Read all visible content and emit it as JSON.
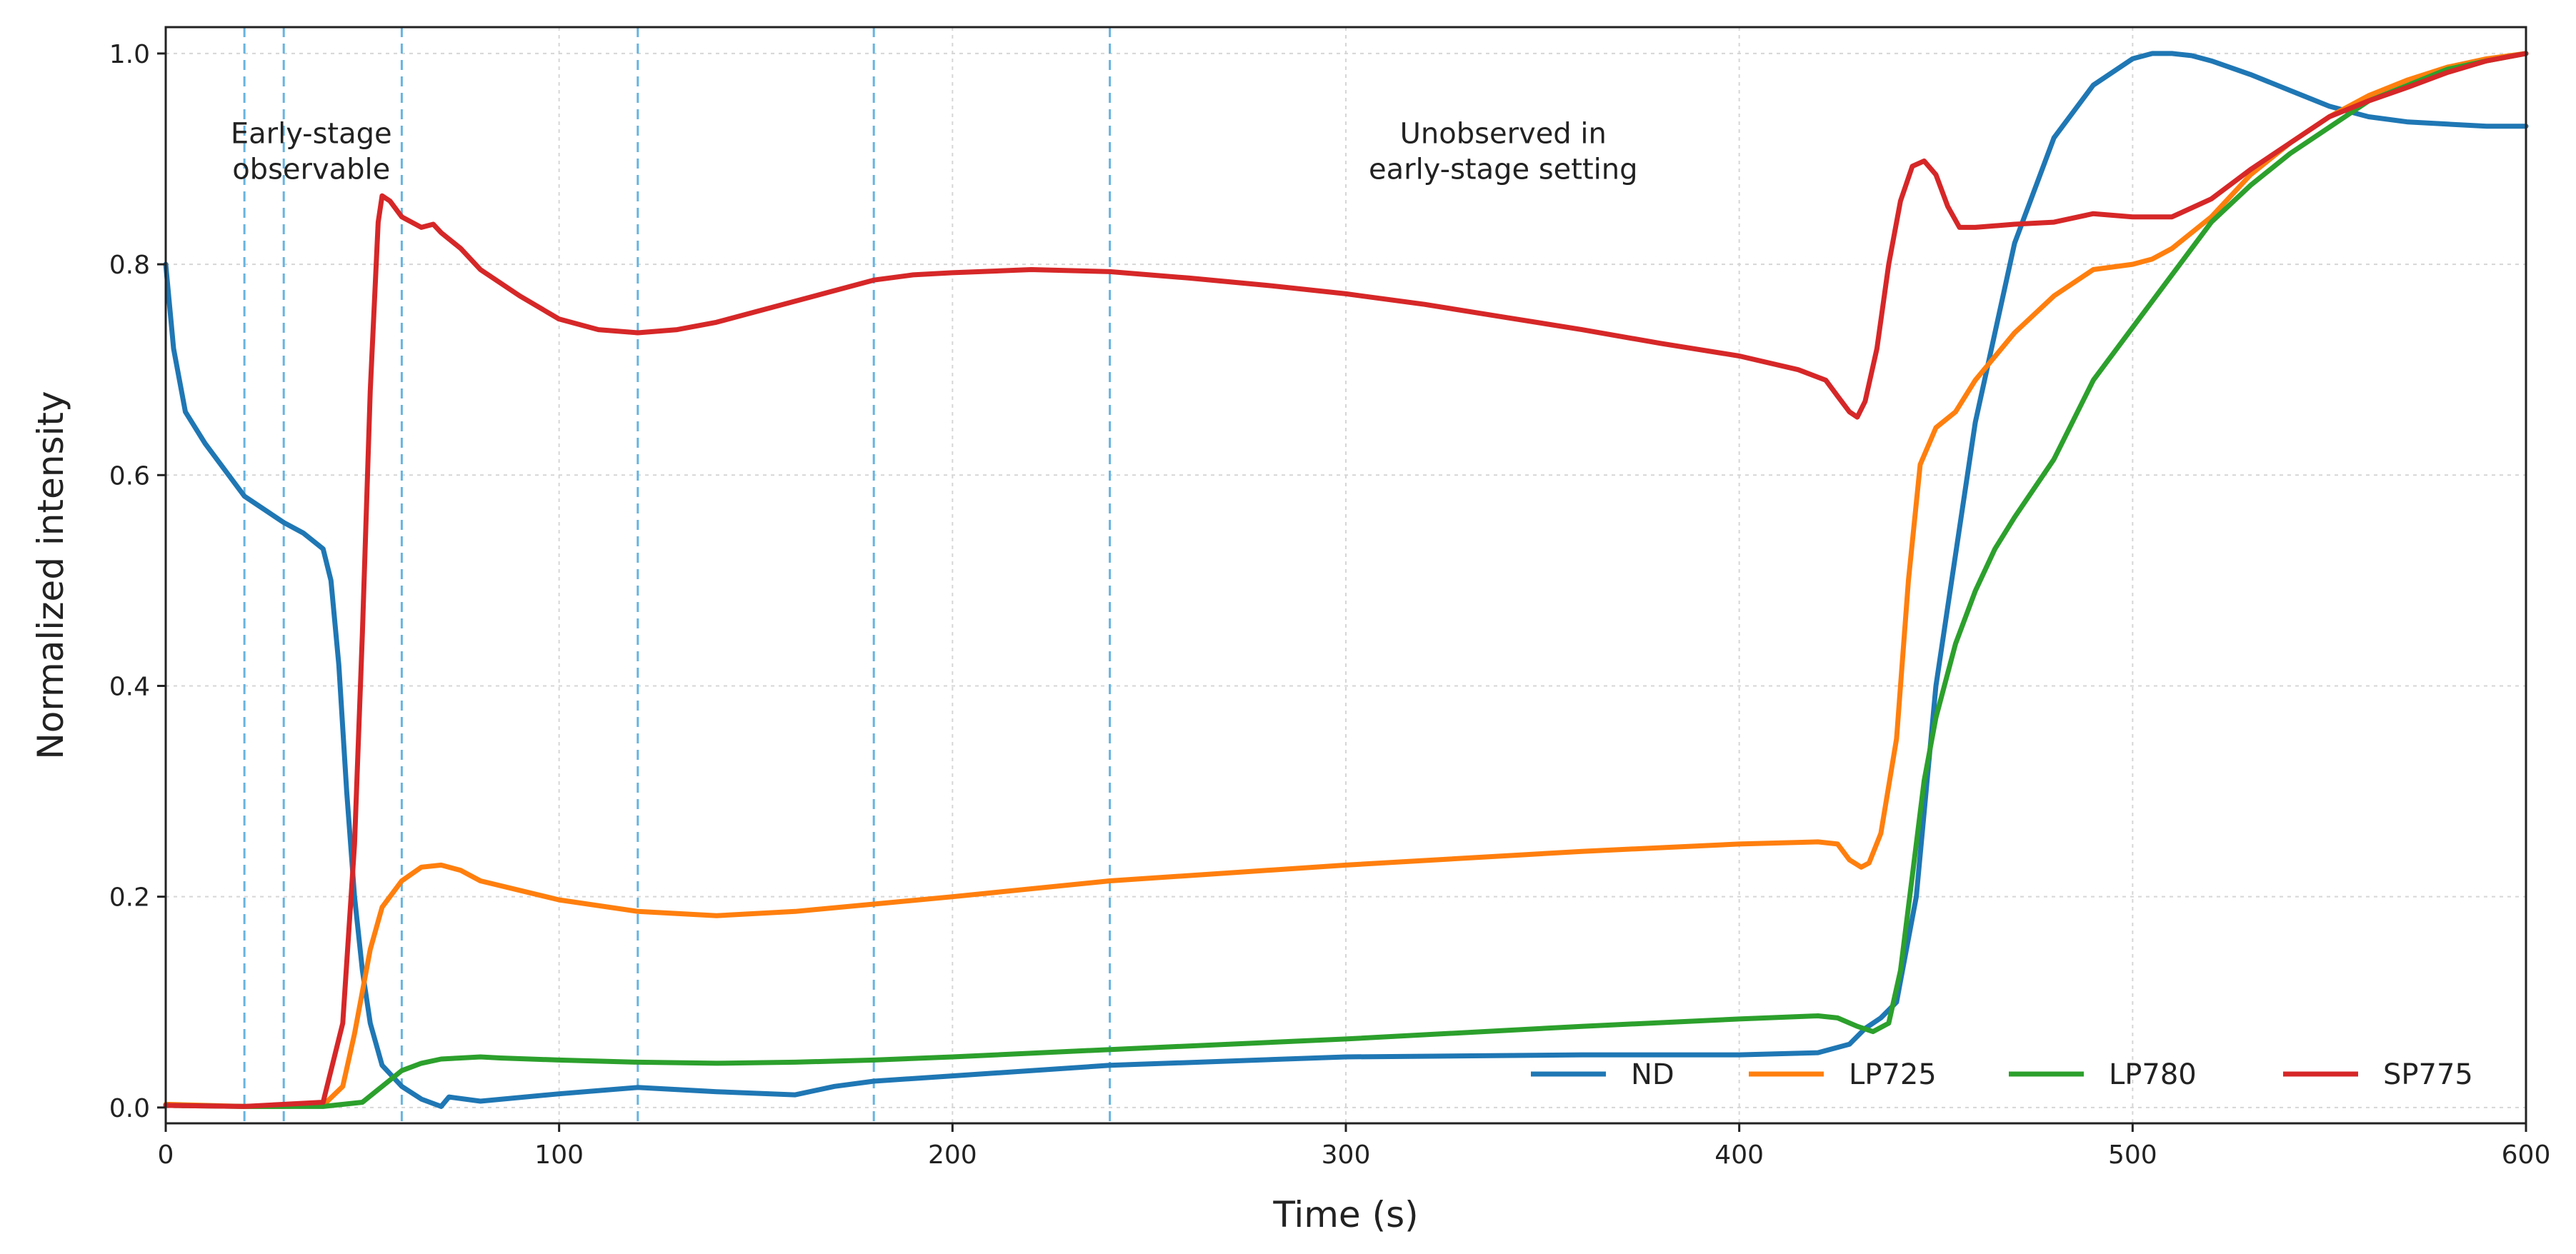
{
  "chart_data": {
    "type": "line",
    "title": "",
    "xlabel": "Time (s)",
    "ylabel": "Normalized intensity",
    "xlim": [
      0,
      600
    ],
    "ylim": [
      -0.015,
      1.025
    ],
    "x_ticks": [
      0,
      100,
      200,
      300,
      400,
      500,
      600
    ],
    "y_ticks": [
      0.0,
      0.2,
      0.4,
      0.6,
      0.8,
      1.0
    ],
    "x_tick_labels": [
      "0",
      "100",
      "200",
      "300",
      "400",
      "500",
      "600"
    ],
    "y_tick_labels": [
      "0.0",
      "0.2",
      "0.4",
      "0.6",
      "0.8",
      "1.0"
    ],
    "grid": true,
    "legend_position": "bottom-right",
    "vlines": [
      20,
      30,
      60,
      120,
      180,
      240
    ],
    "vline_color": "#67b4e0",
    "annotations": [
      {
        "lines": [
          "Early-stage",
          "observable"
        ],
        "x": 37,
        "y": 0.915
      },
      {
        "lines": [
          "Unobserved in",
          "early-stage setting"
        ],
        "x": 340,
        "y": 0.915
      }
    ],
    "series": [
      {
        "name": "ND",
        "color": "#1f77b4",
        "x": [
          0,
          2,
          5,
          10,
          20,
          30,
          35,
          40,
          42,
          44,
          46,
          48,
          50,
          52,
          55,
          60,
          65,
          70,
          72,
          80,
          100,
          120,
          140,
          160,
          170,
          180,
          200,
          240,
          300,
          360,
          400,
          420,
          428,
          432,
          436,
          440,
          445,
          450,
          460,
          470,
          480,
          490,
          500,
          505,
          510,
          515,
          520,
          530,
          540,
          550,
          560,
          570,
          580,
          590,
          600
        ],
        "y": [
          0.8,
          0.72,
          0.66,
          0.63,
          0.58,
          0.555,
          0.545,
          0.53,
          0.5,
          0.42,
          0.3,
          0.2,
          0.13,
          0.08,
          0.04,
          0.02,
          0.008,
          0.001,
          0.01,
          0.006,
          0.013,
          0.019,
          0.015,
          0.012,
          0.02,
          0.025,
          0.03,
          0.04,
          0.048,
          0.05,
          0.05,
          0.052,
          0.06,
          0.075,
          0.085,
          0.1,
          0.2,
          0.4,
          0.65,
          0.82,
          0.92,
          0.97,
          0.995,
          1.0,
          1.0,
          0.998,
          0.993,
          0.98,
          0.965,
          0.95,
          0.94,
          0.935,
          0.933,
          0.931,
          0.931
        ]
      },
      {
        "name": "LP725",
        "color": "#ff7f0e",
        "x": [
          0,
          10,
          20,
          30,
          40,
          45,
          48,
          50,
          52,
          55,
          60,
          65,
          70,
          75,
          80,
          100,
          120,
          140,
          160,
          180,
          200,
          240,
          300,
          360,
          400,
          420,
          425,
          428,
          431,
          433,
          436,
          440,
          443,
          446,
          450,
          455,
          460,
          470,
          480,
          490,
          500,
          505,
          510,
          520,
          530,
          540,
          550,
          560,
          570,
          580,
          590,
          600
        ],
        "y": [
          0.003,
          0.002,
          0.001,
          0.001,
          0.002,
          0.02,
          0.07,
          0.11,
          0.15,
          0.19,
          0.215,
          0.228,
          0.23,
          0.225,
          0.215,
          0.197,
          0.186,
          0.182,
          0.186,
          0.193,
          0.2,
          0.215,
          0.23,
          0.243,
          0.25,
          0.252,
          0.25,
          0.235,
          0.228,
          0.232,
          0.26,
          0.35,
          0.5,
          0.61,
          0.645,
          0.66,
          0.69,
          0.735,
          0.77,
          0.795,
          0.8,
          0.805,
          0.815,
          0.845,
          0.885,
          0.915,
          0.94,
          0.96,
          0.975,
          0.987,
          0.995,
          1.0
        ]
      },
      {
        "name": "LP780",
        "color": "#2ca02c",
        "x": [
          0,
          20,
          40,
          50,
          55,
          60,
          65,
          70,
          75,
          80,
          85,
          100,
          120,
          140,
          160,
          180,
          200,
          240,
          300,
          360,
          400,
          420,
          425,
          430,
          434,
          438,
          441,
          444,
          447,
          450,
          455,
          460,
          465,
          470,
          480,
          490,
          500,
          510,
          520,
          530,
          540,
          550,
          560,
          570,
          580,
          590,
          600
        ],
        "y": [
          0.002,
          0.001,
          0.001,
          0.005,
          0.02,
          0.035,
          0.042,
          0.046,
          0.047,
          0.048,
          0.047,
          0.045,
          0.043,
          0.042,
          0.043,
          0.045,
          0.048,
          0.055,
          0.065,
          0.077,
          0.084,
          0.087,
          0.085,
          0.077,
          0.072,
          0.08,
          0.13,
          0.22,
          0.31,
          0.37,
          0.44,
          0.49,
          0.53,
          0.56,
          0.615,
          0.69,
          0.74,
          0.79,
          0.84,
          0.875,
          0.905,
          0.93,
          0.955,
          0.97,
          0.985,
          0.993,
          1.0
        ]
      },
      {
        "name": "SP775",
        "color": "#d62728",
        "x": [
          0,
          20,
          40,
          45,
          48,
          50,
          52,
          54,
          55,
          57,
          60,
          65,
          68,
          70,
          75,
          80,
          90,
          100,
          110,
          120,
          130,
          140,
          150,
          160,
          170,
          180,
          190,
          200,
          220,
          240,
          260,
          280,
          300,
          320,
          340,
          360,
          380,
          400,
          415,
          422,
          425,
          428,
          430,
          432,
          435,
          438,
          441,
          444,
          447,
          450,
          453,
          456,
          460,
          470,
          480,
          490,
          500,
          510,
          520,
          530,
          540,
          550,
          560,
          570,
          580,
          590,
          600
        ],
        "y": [
          0.002,
          0.001,
          0.005,
          0.08,
          0.25,
          0.45,
          0.68,
          0.84,
          0.865,
          0.86,
          0.845,
          0.835,
          0.838,
          0.83,
          0.815,
          0.795,
          0.77,
          0.748,
          0.738,
          0.735,
          0.738,
          0.745,
          0.755,
          0.765,
          0.775,
          0.785,
          0.79,
          0.792,
          0.795,
          0.793,
          0.787,
          0.78,
          0.772,
          0.762,
          0.75,
          0.738,
          0.725,
          0.713,
          0.7,
          0.69,
          0.675,
          0.66,
          0.655,
          0.67,
          0.72,
          0.8,
          0.86,
          0.893,
          0.898,
          0.885,
          0.855,
          0.835,
          0.835,
          0.838,
          0.84,
          0.848,
          0.845,
          0.845,
          0.862,
          0.89,
          0.915,
          0.94,
          0.955,
          0.968,
          0.982,
          0.993,
          1.0
        ]
      }
    ]
  }
}
